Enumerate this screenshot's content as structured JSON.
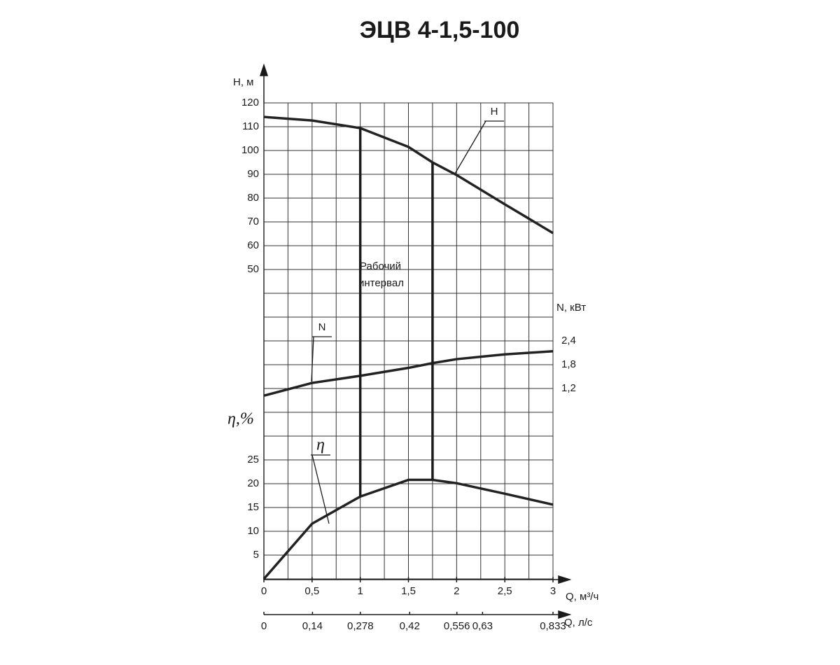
{
  "chart_data": {
    "type": "line",
    "title": "ЭЦВ 4-1,5-100",
    "x_label": "Q, м³/ч",
    "x2_label": "Q, л/с",
    "y_label": "H, м",
    "y2_label": "N, кВт",
    "y3_label": "η,%",
    "annotation": [
      "Рабочий",
      "интервал"
    ],
    "work_interval": [
      1,
      1.75
    ],
    "x": [
      0,
      0.5,
      1,
      1.5,
      1.75,
      2,
      2.5,
      3
    ],
    "xlim": [
      0,
      3
    ],
    "xticks": [
      0,
      {
        "value": 0.5,
        "label": "0,5"
      },
      1,
      {
        "value": 1.5,
        "label": "1,5"
      },
      2,
      {
        "value": 2.5,
        "label": "2,5"
      },
      3
    ],
    "x2lim": [
      0,
      0.833
    ],
    "x2ticks": [
      0,
      {
        "value": 0.14,
        "label": "0,14"
      },
      {
        "value": 0.278,
        "label": "0,278"
      },
      {
        "value": 0.42,
        "label": "0,42"
      },
      {
        "value": 0.556,
        "label": "0,556"
      },
      {
        "value": 0.63,
        "label": "0,63"
      },
      {
        "value": 0.833,
        "label": "0,833"
      }
    ],
    "ylim": [
      50,
      120
    ],
    "yticks": [
      120,
      110,
      100,
      90,
      80,
      70,
      60,
      50
    ],
    "y2lim": [
      1.2,
      2.4
    ],
    "y2ticks": [
      {
        "value": 2.4,
        "label": "2,4"
      },
      {
        "value": 1.8,
        "label": "1,8"
      },
      {
        "value": 1.2,
        "label": "1,2"
      }
    ],
    "y3lim": [
      0,
      25
    ],
    "y3ticks": [
      25,
      20,
      15,
      10,
      5
    ],
    "grid": true,
    "series": [
      {
        "name": "H",
        "color": "#222222",
        "axis": "y",
        "values": [
          114.1,
          112.6,
          109.4,
          101.5,
          95,
          89.7,
          77.4,
          65.3
        ]
      },
      {
        "name": "N",
        "color": "#222222",
        "axis": "y2",
        "values": [
          1.02,
          1.34,
          1.52,
          1.72,
          1.84,
          1.94,
          2.06,
          2.14
        ]
      },
      {
        "name": "η",
        "color": "#222222",
        "axis": "y3",
        "values": [
          0,
          11.6,
          17.3,
          20.8,
          20.8,
          20.1,
          17.9,
          15.6
        ]
      }
    ]
  }
}
